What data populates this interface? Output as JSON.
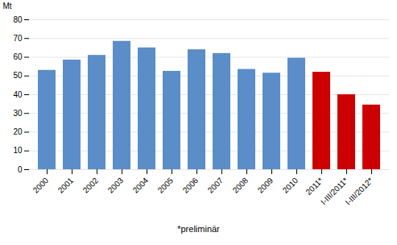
{
  "chart_data": {
    "type": "bar",
    "categories": [
      "2000",
      "2001",
      "2002",
      "2003",
      "2004",
      "2005",
      "2006",
      "2007",
      "2008",
      "2009",
      "2010",
      "2011*",
      "I-III/2011*",
      "I-III/2012*"
    ],
    "values": [
      53.0,
      58.5,
      61.0,
      68.5,
      65.0,
      52.5,
      64.0,
      62.0,
      53.5,
      51.5,
      59.5,
      52.0,
      40.0,
      34.5
    ],
    "colors": [
      "#5B8DC8",
      "#5B8DC8",
      "#5B8DC8",
      "#5B8DC8",
      "#5B8DC8",
      "#5B8DC8",
      "#5B8DC8",
      "#5B8DC8",
      "#5B8DC8",
      "#5B8DC8",
      "#5B8DC8",
      "#CC0000",
      "#CC0000",
      "#CC0000"
    ],
    "ylabel": "Mt",
    "annotations": [
      "*preliminär"
    ],
    "ylim": [
      0,
      80
    ],
    "yticks": [
      0,
      10,
      20,
      30,
      40,
      50,
      60,
      70,
      80
    ],
    "grid": true
  }
}
